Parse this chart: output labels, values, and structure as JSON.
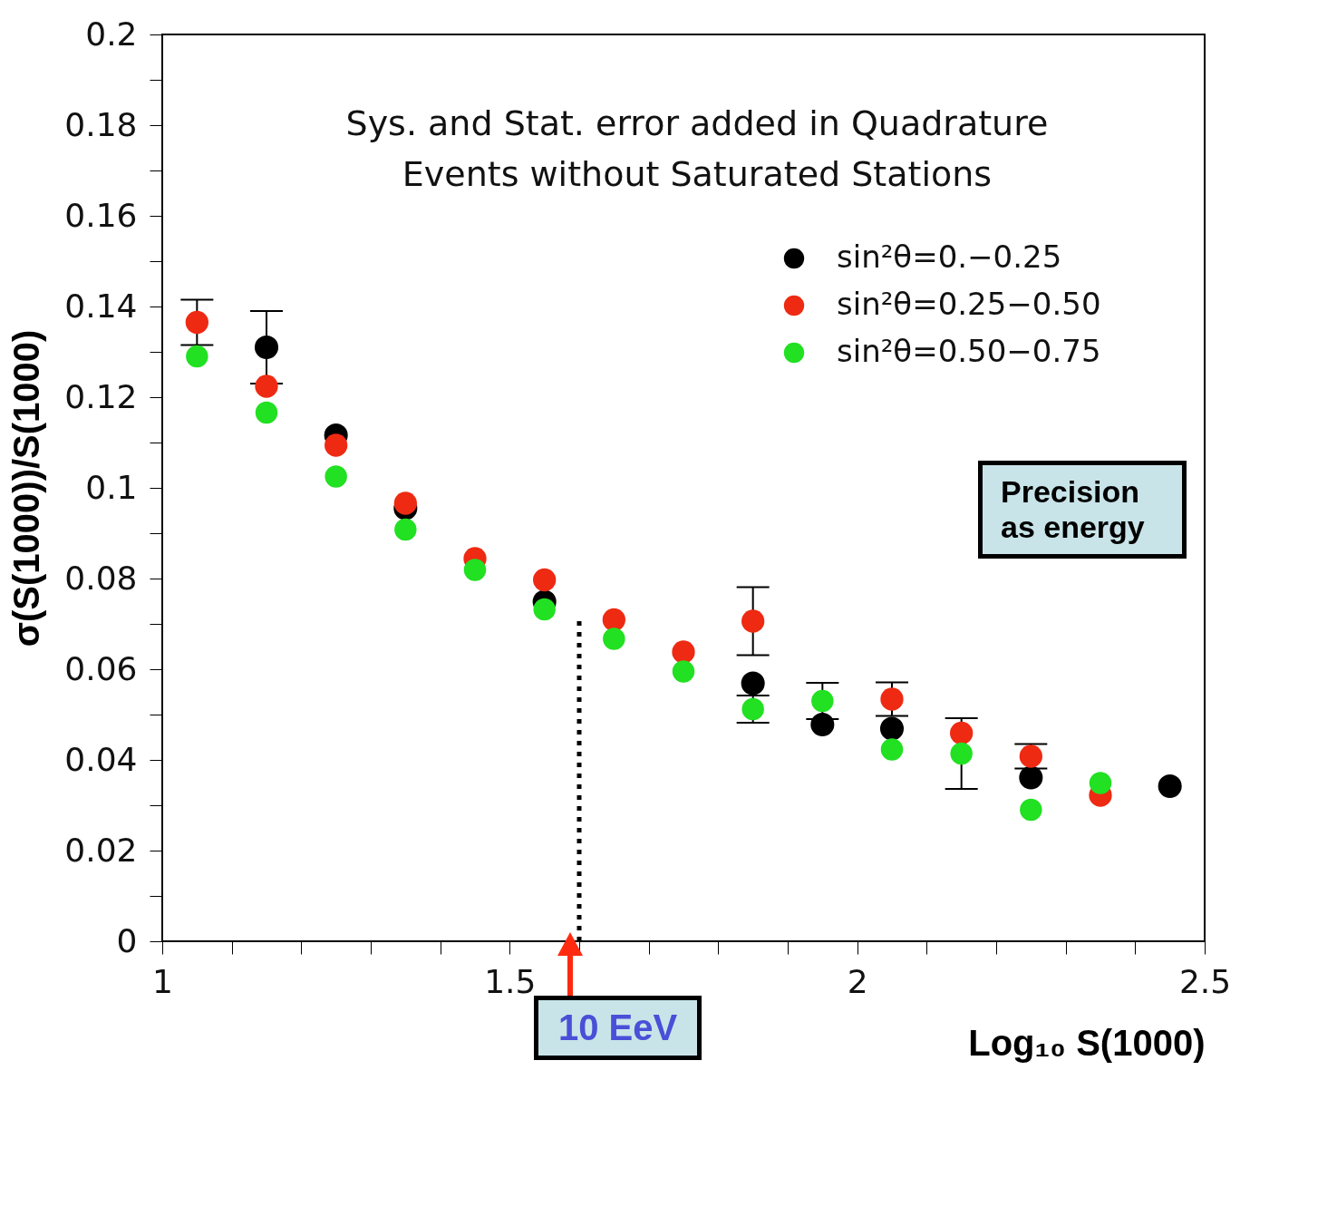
{
  "chart_data": {
    "type": "scatter",
    "xlabel": "Log₁₀ S(1000)",
    "ylabel": "σ(S(1000))/S(1000)",
    "x": [
      1.05,
      1.15,
      1.25,
      1.35,
      1.45,
      1.55,
      1.65,
      1.75,
      1.85,
      1.95,
      2.05,
      2.15,
      2.25,
      2.35,
      2.45
    ],
    "series": [
      {
        "name": "sin²θ=0.−0.25",
        "color": "#000000",
        "values": [
          null,
          0.131,
          0.1116,
          0.0955,
          null,
          0.0749,
          null,
          null,
          0.0569,
          0.0478,
          0.0469,
          null,
          0.0361,
          null,
          0.0342
        ],
        "errors": [
          null,
          0.008,
          null,
          null,
          null,
          null,
          null,
          null,
          null,
          null,
          null,
          null,
          null,
          null,
          null
        ]
      },
      {
        "name": "sin²θ=0.25−0.50",
        "color": "#ee2a12",
        "values": [
          0.1365,
          0.1224,
          0.1094,
          0.0966,
          0.0844,
          0.0797,
          0.0709,
          0.0638,
          0.0706,
          null,
          0.0534,
          0.0459,
          0.0408,
          0.0322,
          null
        ],
        "errors": [
          0.005,
          null,
          null,
          null,
          null,
          null,
          null,
          null,
          0.0075,
          null,
          0.0037,
          null,
          0.0027,
          null,
          null
        ]
      },
      {
        "name": "sin²θ=0.50−0.75",
        "color": "#22e022",
        "values": [
          0.129,
          0.1166,
          0.1025,
          0.0908,
          0.0819,
          0.0732,
          0.0667,
          0.0595,
          0.0512,
          0.053,
          0.0423,
          0.0414,
          0.029,
          0.0349,
          null
        ],
        "errors": [
          null,
          null,
          null,
          null,
          null,
          null,
          null,
          null,
          0.003,
          0.004,
          null,
          0.0078,
          null,
          null,
          null
        ]
      }
    ],
    "xlim": [
      1,
      2.5
    ],
    "xticks": [
      1,
      {
        "value": 1.1,
        "label": null
      },
      {
        "value": 1.2,
        "label": null
      },
      {
        "value": 1.3,
        "label": null
      },
      {
        "value": 1.4,
        "label": null
      },
      1.5,
      {
        "value": 1.6,
        "label": null
      },
      {
        "value": 1.7,
        "label": null
      },
      {
        "value": 1.8,
        "label": null
      },
      {
        "value": 1.9,
        "label": null
      },
      2,
      {
        "value": 2.1,
        "label": null
      },
      {
        "value": 2.2,
        "label": null
      },
      {
        "value": 2.3,
        "label": null
      },
      {
        "value": 2.4,
        "label": null
      },
      2.5
    ],
    "ylim": [
      0,
      0.2
    ],
    "yticks": [
      0,
      {
        "value": 0.01,
        "label": null
      },
      0.02,
      {
        "value": 0.03,
        "label": null
      },
      0.04,
      {
        "value": 0.05,
        "label": null
      },
      0.06,
      {
        "value": 0.07,
        "label": null
      },
      0.08,
      {
        "value": 0.09,
        "label": null
      },
      0.1,
      {
        "value": 0.11,
        "label": null
      },
      0.12,
      {
        "value": 0.13,
        "label": null
      },
      0.14,
      {
        "value": 0.15,
        "label": null
      },
      0.16,
      {
        "value": 0.17,
        "label": null
      },
      0.18,
      {
        "value": 0.19,
        "label": null
      },
      0.2
    ],
    "annotations": [
      "Sys. and Stat. error added in Quadrature",
      "Events without Saturated Stations",
      "Precision as energy"
    ],
    "ref_lines": [
      {
        "axis": "x",
        "value": 1.6,
        "label": "10 EeV",
        "line_style": "dotted"
      }
    ],
    "grid": false,
    "legend": "top right",
    "marker": "circle"
  }
}
